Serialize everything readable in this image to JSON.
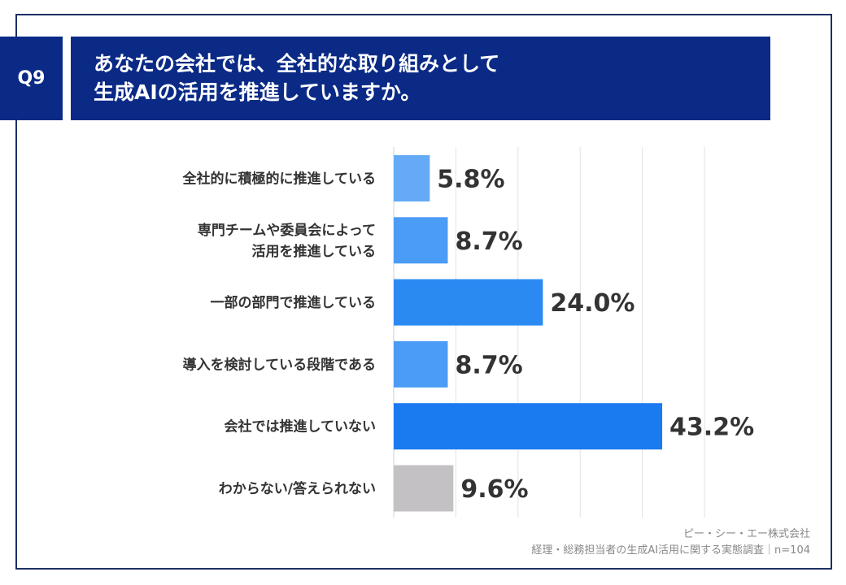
{
  "question_tag": "Q9",
  "title_lines": [
    "あなたの会社では、全社的な取り組みとして",
    "生成AIの活用を推進していますか。"
  ],
  "footer": {
    "company": "ピー・シー・エー株式会社",
    "survey": "経理・総務担当者の生成AI活用に関する実態調査｜n=104"
  },
  "chart_data": {
    "type": "bar",
    "orientation": "horizontal",
    "categories": [
      [
        "全社的に積極的に推進している"
      ],
      [
        "専門チームや委員会によって",
        "活用を推進している"
      ],
      [
        "一部の部門で推進している"
      ],
      [
        "導入を検討している段階である"
      ],
      [
        "会社では推進していない"
      ],
      [
        "わからない/答えられない"
      ]
    ],
    "values": [
      5.8,
      8.7,
      24.0,
      8.7,
      43.2,
      9.6
    ],
    "value_labels": [
      "5.8%",
      "8.7%",
      "24.0%",
      "8.7%",
      "43.2%",
      "9.6%"
    ],
    "bar_colors": [
      "#64aaf6",
      "#4a9cf5",
      "#2b89f2",
      "#4a9cf5",
      "#1a7af0",
      "#c4c1c4"
    ],
    "xlim": [
      0,
      50
    ],
    "grid": true,
    "legend": "none"
  }
}
